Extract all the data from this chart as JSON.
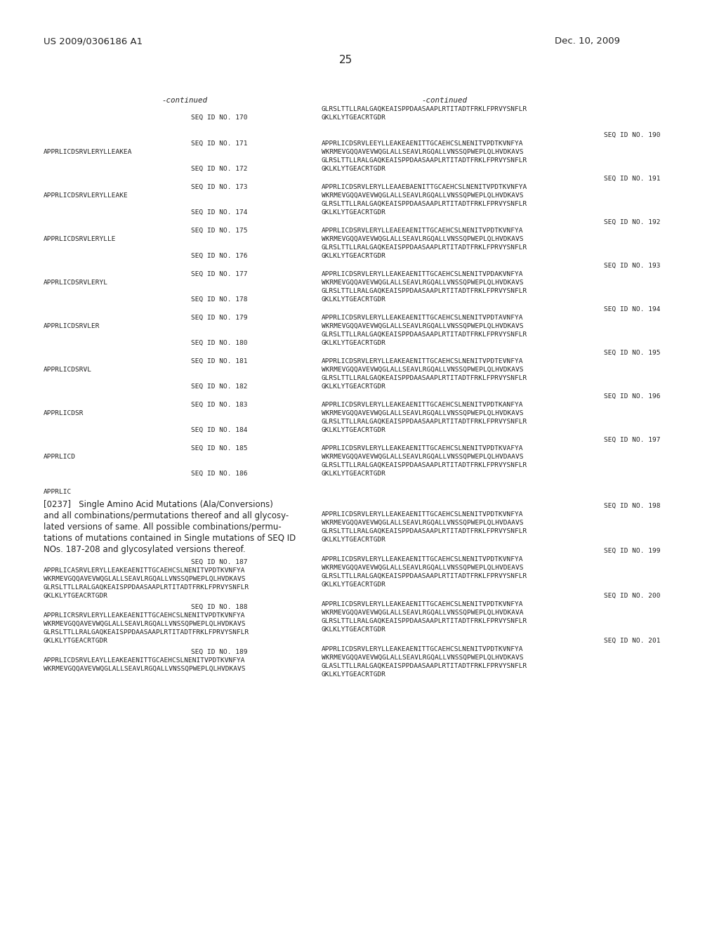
{
  "bg_color": "#ffffff",
  "header_left": "US 2009/0306186 A1",
  "header_right": "Dec. 10, 2009",
  "page_number": "25",
  "fig_width": 10.24,
  "fig_height": 13.2,
  "dpi": 100
}
